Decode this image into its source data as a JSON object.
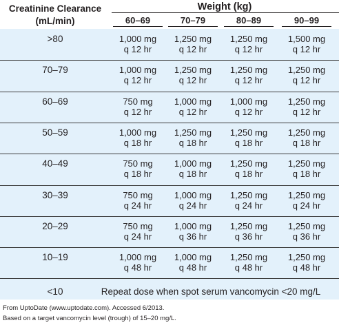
{
  "header": {
    "clearance_line1": "Creatinine Clearance",
    "clearance_line2": "(mL/min)",
    "weight_title": "Weight (kg)",
    "columns": [
      "60–69",
      "70–79",
      "80–89",
      "90–99"
    ]
  },
  "rows": [
    {
      "clearance": ">80",
      "doses": [
        {
          "amount": "1,000 mg",
          "interval": "q 12 hr"
        },
        {
          "amount": "1,250 mg",
          "interval": "q 12 hr"
        },
        {
          "amount": "1,250 mg",
          "interval": "q 12 hr"
        },
        {
          "amount": "1,500 mg",
          "interval": "q 12 hr"
        }
      ]
    },
    {
      "clearance": "70–79",
      "doses": [
        {
          "amount": "1,000 mg",
          "interval": "q 12 hr"
        },
        {
          "amount": "1,250 mg",
          "interval": "q 12 hr"
        },
        {
          "amount": "1,250 mg",
          "interval": "q 12 hr"
        },
        {
          "amount": "1,250 mg",
          "interval": "q 12 hr"
        }
      ]
    },
    {
      "clearance": "60–69",
      "doses": [
        {
          "amount": "750 mg",
          "interval": "q 12 hr"
        },
        {
          "amount": "1,000 mg",
          "interval": "q 12 hr"
        },
        {
          "amount": "1,000 mg",
          "interval": "q 12 hr"
        },
        {
          "amount": "1,250 mg",
          "interval": "q 12 hr"
        }
      ]
    },
    {
      "clearance": "50–59",
      "doses": [
        {
          "amount": "1,000 mg",
          "interval": "q 18 hr"
        },
        {
          "amount": "1,250 mg",
          "interval": "q 18 hr"
        },
        {
          "amount": "1,250 mg",
          "interval": "q 18 hr"
        },
        {
          "amount": "1,250 mg",
          "interval": "q 18 hr"
        }
      ]
    },
    {
      "clearance": "40–49",
      "doses": [
        {
          "amount": "750 mg",
          "interval": "q 18 hr"
        },
        {
          "amount": "1,000 mg",
          "interval": "q 18 hr"
        },
        {
          "amount": "1,250 mg",
          "interval": "q 18 hr"
        },
        {
          "amount": "1,250 mg",
          "interval": "q 18 hr"
        }
      ]
    },
    {
      "clearance": "30–39",
      "doses": [
        {
          "amount": "750 mg",
          "interval": "q 24 hr"
        },
        {
          "amount": "1,000 mg",
          "interval": "q 24 hr"
        },
        {
          "amount": "1,250 mg",
          "interval": "q 24 hr"
        },
        {
          "amount": "1,250 mg",
          "interval": "q 24 hr"
        }
      ]
    },
    {
      "clearance": "20–29",
      "doses": [
        {
          "amount": "750 mg",
          "interval": "q 24 hr"
        },
        {
          "amount": "1,000 mg",
          "interval": "q 36 hr"
        },
        {
          "amount": "1,250 mg",
          "interval": "q 36 hr"
        },
        {
          "amount": "1,250 mg",
          "interval": "q 36 hr"
        }
      ]
    },
    {
      "clearance": "10–19",
      "doses": [
        {
          "amount": "1,000 mg",
          "interval": "q 48 hr"
        },
        {
          "amount": "1,000 mg",
          "interval": "q 48 hr"
        },
        {
          "amount": "1,250 mg",
          "interval": "q 48 hr"
        },
        {
          "amount": "1,250 mg",
          "interval": "q 48 hr"
        }
      ]
    }
  ],
  "last_row": {
    "clearance": "<10",
    "note": "Repeat dose when spot serum vancomycin <20 mg/L"
  },
  "footer": {
    "source": "From UptoDate (www.uptodate.com). Accessed 6/2013.",
    "basis": "Based on a target vancomycin level (trough) of 15–20 mg/L."
  },
  "colors": {
    "body_fill": "#e3f1fb",
    "text": "#231f20",
    "rule": "#3a3a3a"
  }
}
